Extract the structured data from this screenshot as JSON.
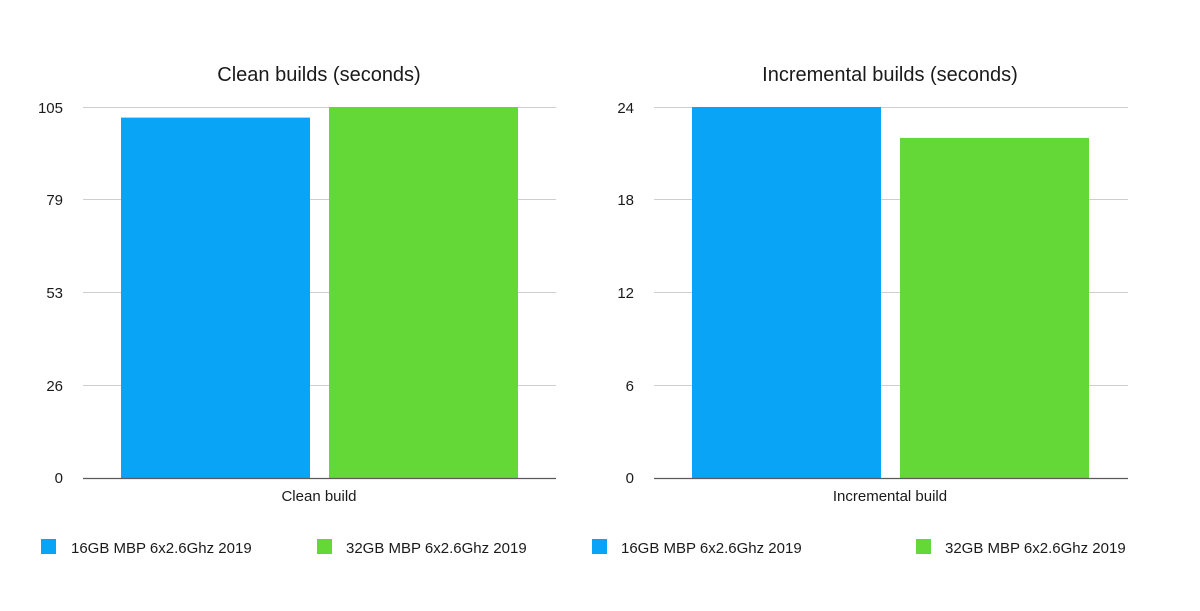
{
  "colors": {
    "series_1": "#0aa4f6",
    "series_2": "#63d836",
    "gridline": "#cfcfcf",
    "axis": "#5a5a5a"
  },
  "chart_data": [
    {
      "type": "bar",
      "title": "Clean builds (seconds)",
      "categories": [
        "Clean build"
      ],
      "series": [
        {
          "name": "16GB MBP 6x2.6Ghz 2019",
          "values": [
            102
          ]
        },
        {
          "name": "32GB MBP 6x2.6Ghz 2019",
          "values": [
            105
          ]
        }
      ],
      "yticks": [
        "0",
        "26",
        "53",
        "79",
        "105"
      ],
      "ylim": [
        0,
        105
      ],
      "grid": true,
      "legend_position": "bottom"
    },
    {
      "type": "bar",
      "title": "Incremental builds (seconds)",
      "categories": [
        "Incremental build"
      ],
      "series": [
        {
          "name": "16GB MBP 6x2.6Ghz 2019",
          "values": [
            24
          ]
        },
        {
          "name": "32GB MBP 6x2.6Ghz 2019",
          "values": [
            22
          ]
        }
      ],
      "yticks": [
        "0",
        "6",
        "12",
        "18",
        "24"
      ],
      "ylim": [
        0,
        24
      ],
      "grid": true,
      "legend_position": "bottom"
    }
  ]
}
